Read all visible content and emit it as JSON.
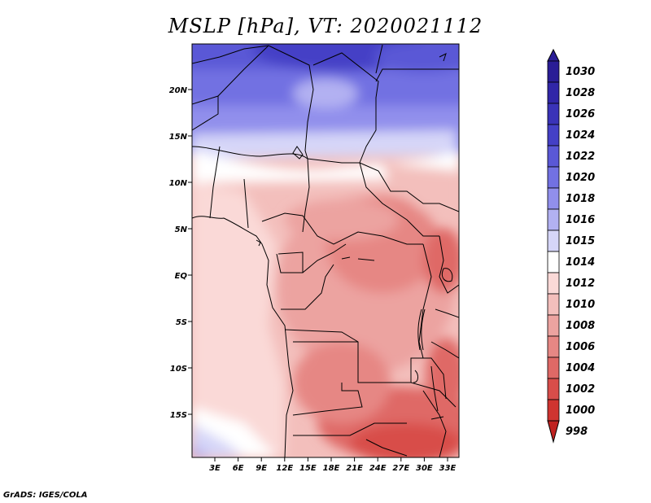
{
  "title": "MSLP [hPa], VT: 2020021112",
  "credit": "GrADS: IGES/COLA",
  "lat_ticks": [
    "20N",
    "15N",
    "10N",
    "5N",
    "EQ",
    "5S",
    "10S",
    "15S"
  ],
  "lon_ticks": [
    "3E",
    "6E",
    "9E",
    "12E",
    "15E",
    "18E",
    "21E",
    "24E",
    "27E",
    "30E",
    "33E"
  ],
  "colorbar": [
    {
      "label": "1030",
      "color": "#2a1d96"
    },
    {
      "label": "1028",
      "color": "#3126a8"
    },
    {
      "label": "1026",
      "color": "#3a33b8"
    },
    {
      "label": "1024",
      "color": "#4440c6"
    },
    {
      "label": "1022",
      "color": "#5a58d6"
    },
    {
      "label": "1020",
      "color": "#7271e2"
    },
    {
      "label": "1018",
      "color": "#918fec"
    },
    {
      "label": "1016",
      "color": "#b2b1f2"
    },
    {
      "label": "1015",
      "color": "#d6d6f8"
    },
    {
      "label": "1014",
      "color": "#ffffff"
    },
    {
      "label": "1012",
      "color": "#fad9d7"
    },
    {
      "label": "1010",
      "color": "#f3bfbc"
    },
    {
      "label": "1008",
      "color": "#eca3a0"
    },
    {
      "label": "1006",
      "color": "#e68784"
    },
    {
      "label": "1004",
      "color": "#df6966"
    },
    {
      "label": "1002",
      "color": "#d84d4a"
    },
    {
      "label": "1000",
      "color": "#cf3430"
    },
    {
      "label": "998",
      "color": "#c02220"
    }
  ]
}
